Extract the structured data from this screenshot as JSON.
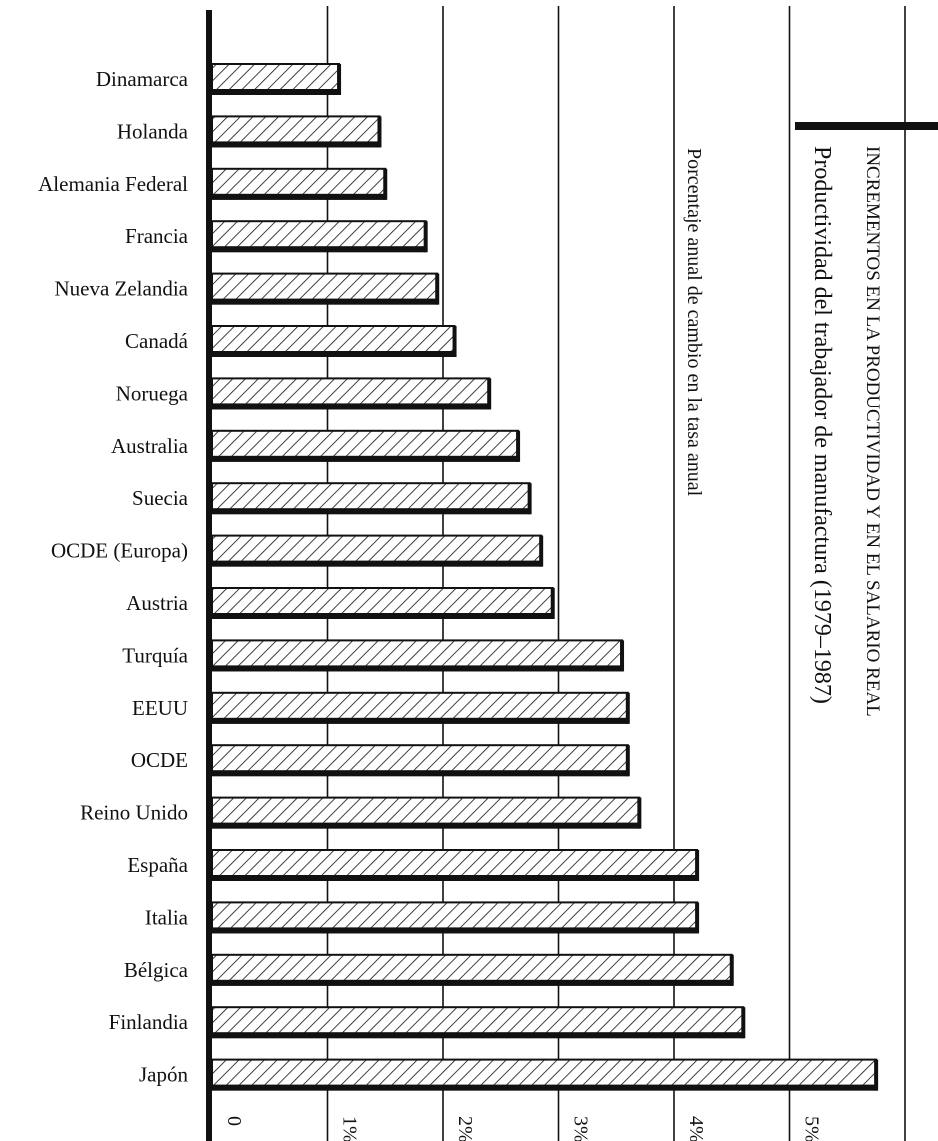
{
  "chart_data": {
    "type": "bar",
    "orientation": "horizontal",
    "title": "INCREMENTOS EN LA PRODUCTIVIDAD Y EN EL SALARIO REAL",
    "subtitle": "Productividad del trabajador de manufactura (1979–1987)",
    "xlabel": "Porcentaje anual de cambio en la tasa anual",
    "ylabel": "",
    "categories": [
      "Dinamarca",
      "Holanda",
      "Alemania Federal",
      "Francia",
      "Nueva Zelandia",
      "Canadá",
      "Noruega",
      "Australia",
      "Suecia",
      "OCDE (Europa)",
      "Austria",
      "Turquía",
      "EEUU",
      "OCDE",
      "Reino Unido",
      "España",
      "Italia",
      "Bélgica",
      "Finlandia",
      "Japón"
    ],
    "values": [
      1.1,
      1.45,
      1.5,
      1.85,
      1.95,
      2.1,
      2.4,
      2.65,
      2.75,
      2.85,
      2.95,
      3.55,
      3.6,
      3.6,
      3.7,
      4.2,
      4.2,
      4.5,
      4.6,
      5.75
    ],
    "xlim": [
      0,
      6
    ],
    "xticks": [
      "0",
      "1%",
      "2%",
      "3%",
      "4%",
      "5%"
    ],
    "grid": true,
    "pattern": "diagonal hatch",
    "colors": {
      "ink": "#111111",
      "background": "#ffffff"
    }
  }
}
